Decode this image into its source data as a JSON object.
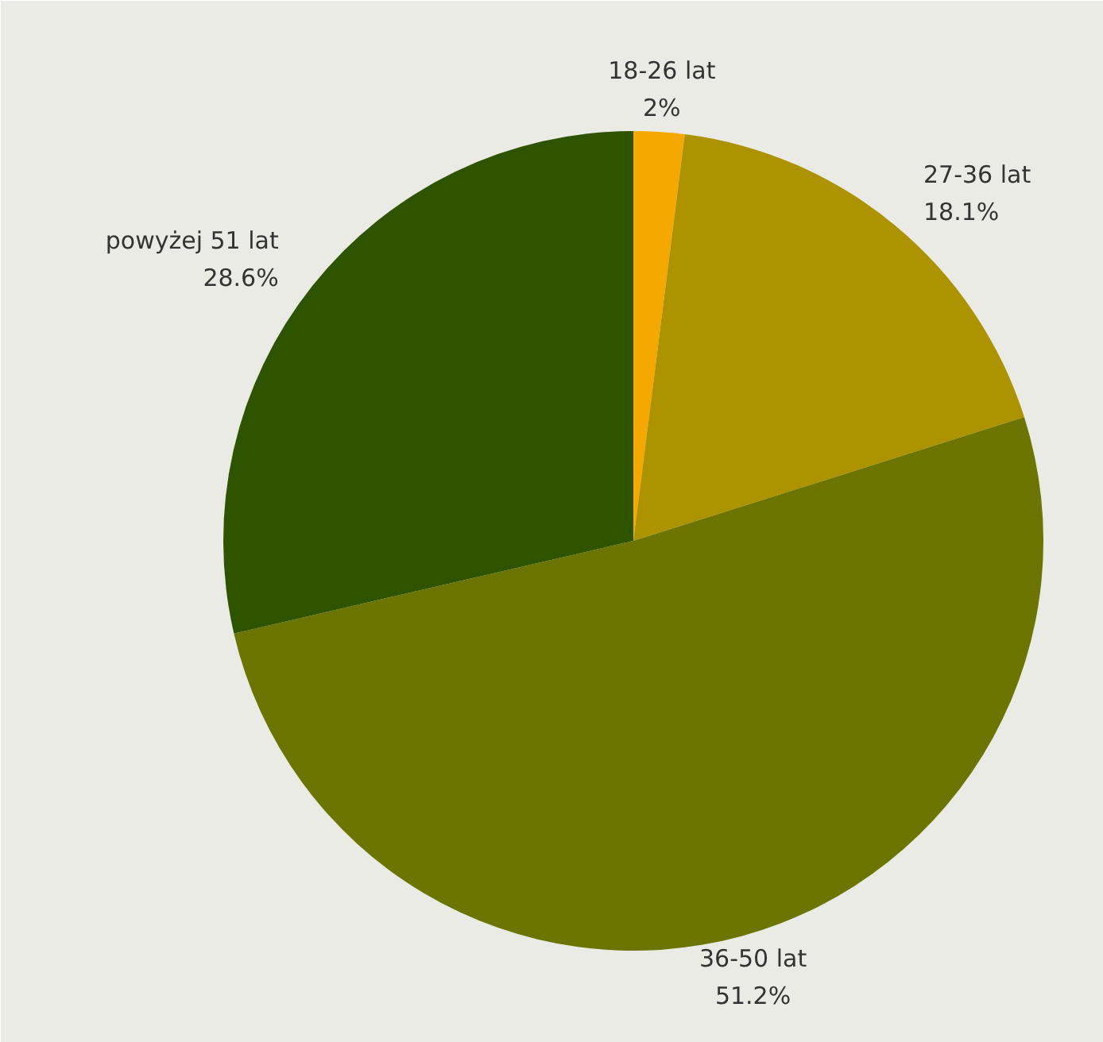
{
  "chart_data": {
    "type": "pie",
    "categories": [
      "18-26 lat",
      "27-36 lat",
      "36-50 lat",
      "powyżej 51 lat"
    ],
    "values": [
      2,
      18.1,
      51.2,
      28.6
    ],
    "colors": [
      "#f5a800",
      "#ad9300",
      "#6b7500",
      "#2e5400"
    ],
    "value_labels": [
      "2%",
      "18.1%",
      "51.2%",
      "28.6%"
    ]
  }
}
